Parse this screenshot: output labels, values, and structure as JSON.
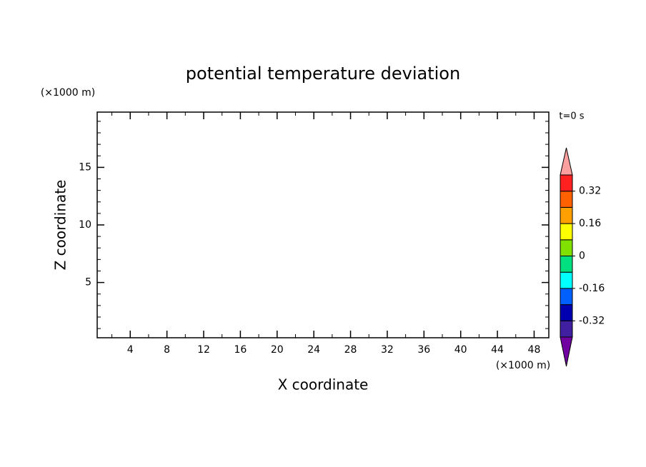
{
  "chart_data": {
    "type": "contour",
    "title": "potential temperature deviation",
    "x_label": "X coordinate",
    "y_label": "Z coordinate",
    "x_unit": "(×1000 m)",
    "y_unit": "(×1000 m)",
    "annotation": "t=0 s",
    "xlim": [
      0.4,
      49.6
    ],
    "xticks": [
      4,
      8,
      12,
      16,
      20,
      24,
      28,
      32,
      36,
      40,
      44,
      48
    ],
    "xminorticks": [
      2,
      6,
      10,
      14,
      18,
      22,
      26,
      30,
      34,
      38,
      42,
      46
    ],
    "ylim": [
      0.2,
      19.8
    ],
    "yticks": [
      5,
      10,
      15
    ],
    "yminorticks": [
      1,
      2,
      3,
      4,
      6,
      7,
      8,
      9,
      11,
      12,
      13,
      14,
      16,
      17,
      18,
      19
    ],
    "colorbar": {
      "levels": [
        -0.4,
        -0.32,
        -0.24,
        -0.16,
        -0.08,
        0,
        0.08,
        0.16,
        0.24,
        0.32,
        0.4
      ],
      "colors": [
        "#4020a0",
        "#0000b0",
        "#0060ff",
        "#00ffff",
        "#00e080",
        "#80e000",
        "#ffff00",
        "#ffa000",
        "#ff6000",
        "#ff2020"
      ],
      "under_color": "#7000a0",
      "over_color": "#ffa0a0",
      "ticks": [
        -0.32,
        -0.16,
        0,
        0.16,
        0.32
      ]
    }
  }
}
